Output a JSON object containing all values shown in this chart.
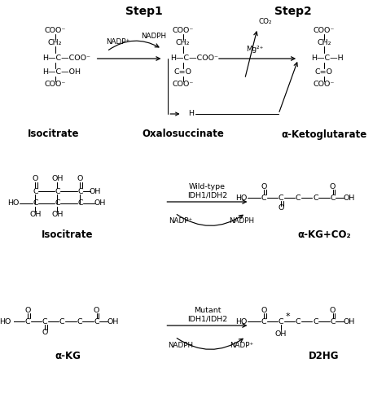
{
  "figsize": [
    4.74,
    4.94
  ],
  "dpi": 100,
  "step1": "Step1",
  "step2": "Step2",
  "isocitrate": "Isocitrate",
  "oxalosuccinate": "Oxalosuccinate",
  "akg": "α-Ketoglutarate",
  "isocitrate2": "Isocitrate",
  "akg_co2": "α-KG+CO₂",
  "alpha_kg": "α-KG",
  "d2hg": "D2HG",
  "wildtype": "Wild-type\nIDH1/IDH2",
  "mutant": "Mutant\nIDH1/IDH2",
  "nadp_plus": "NADP⁺",
  "nadph": "NADPH",
  "nadph2": "NADPH",
  "nadp_plus2": "NADP⁺",
  "mg2": "Mg²⁺",
  "co2": "CO₂",
  "h": "H"
}
